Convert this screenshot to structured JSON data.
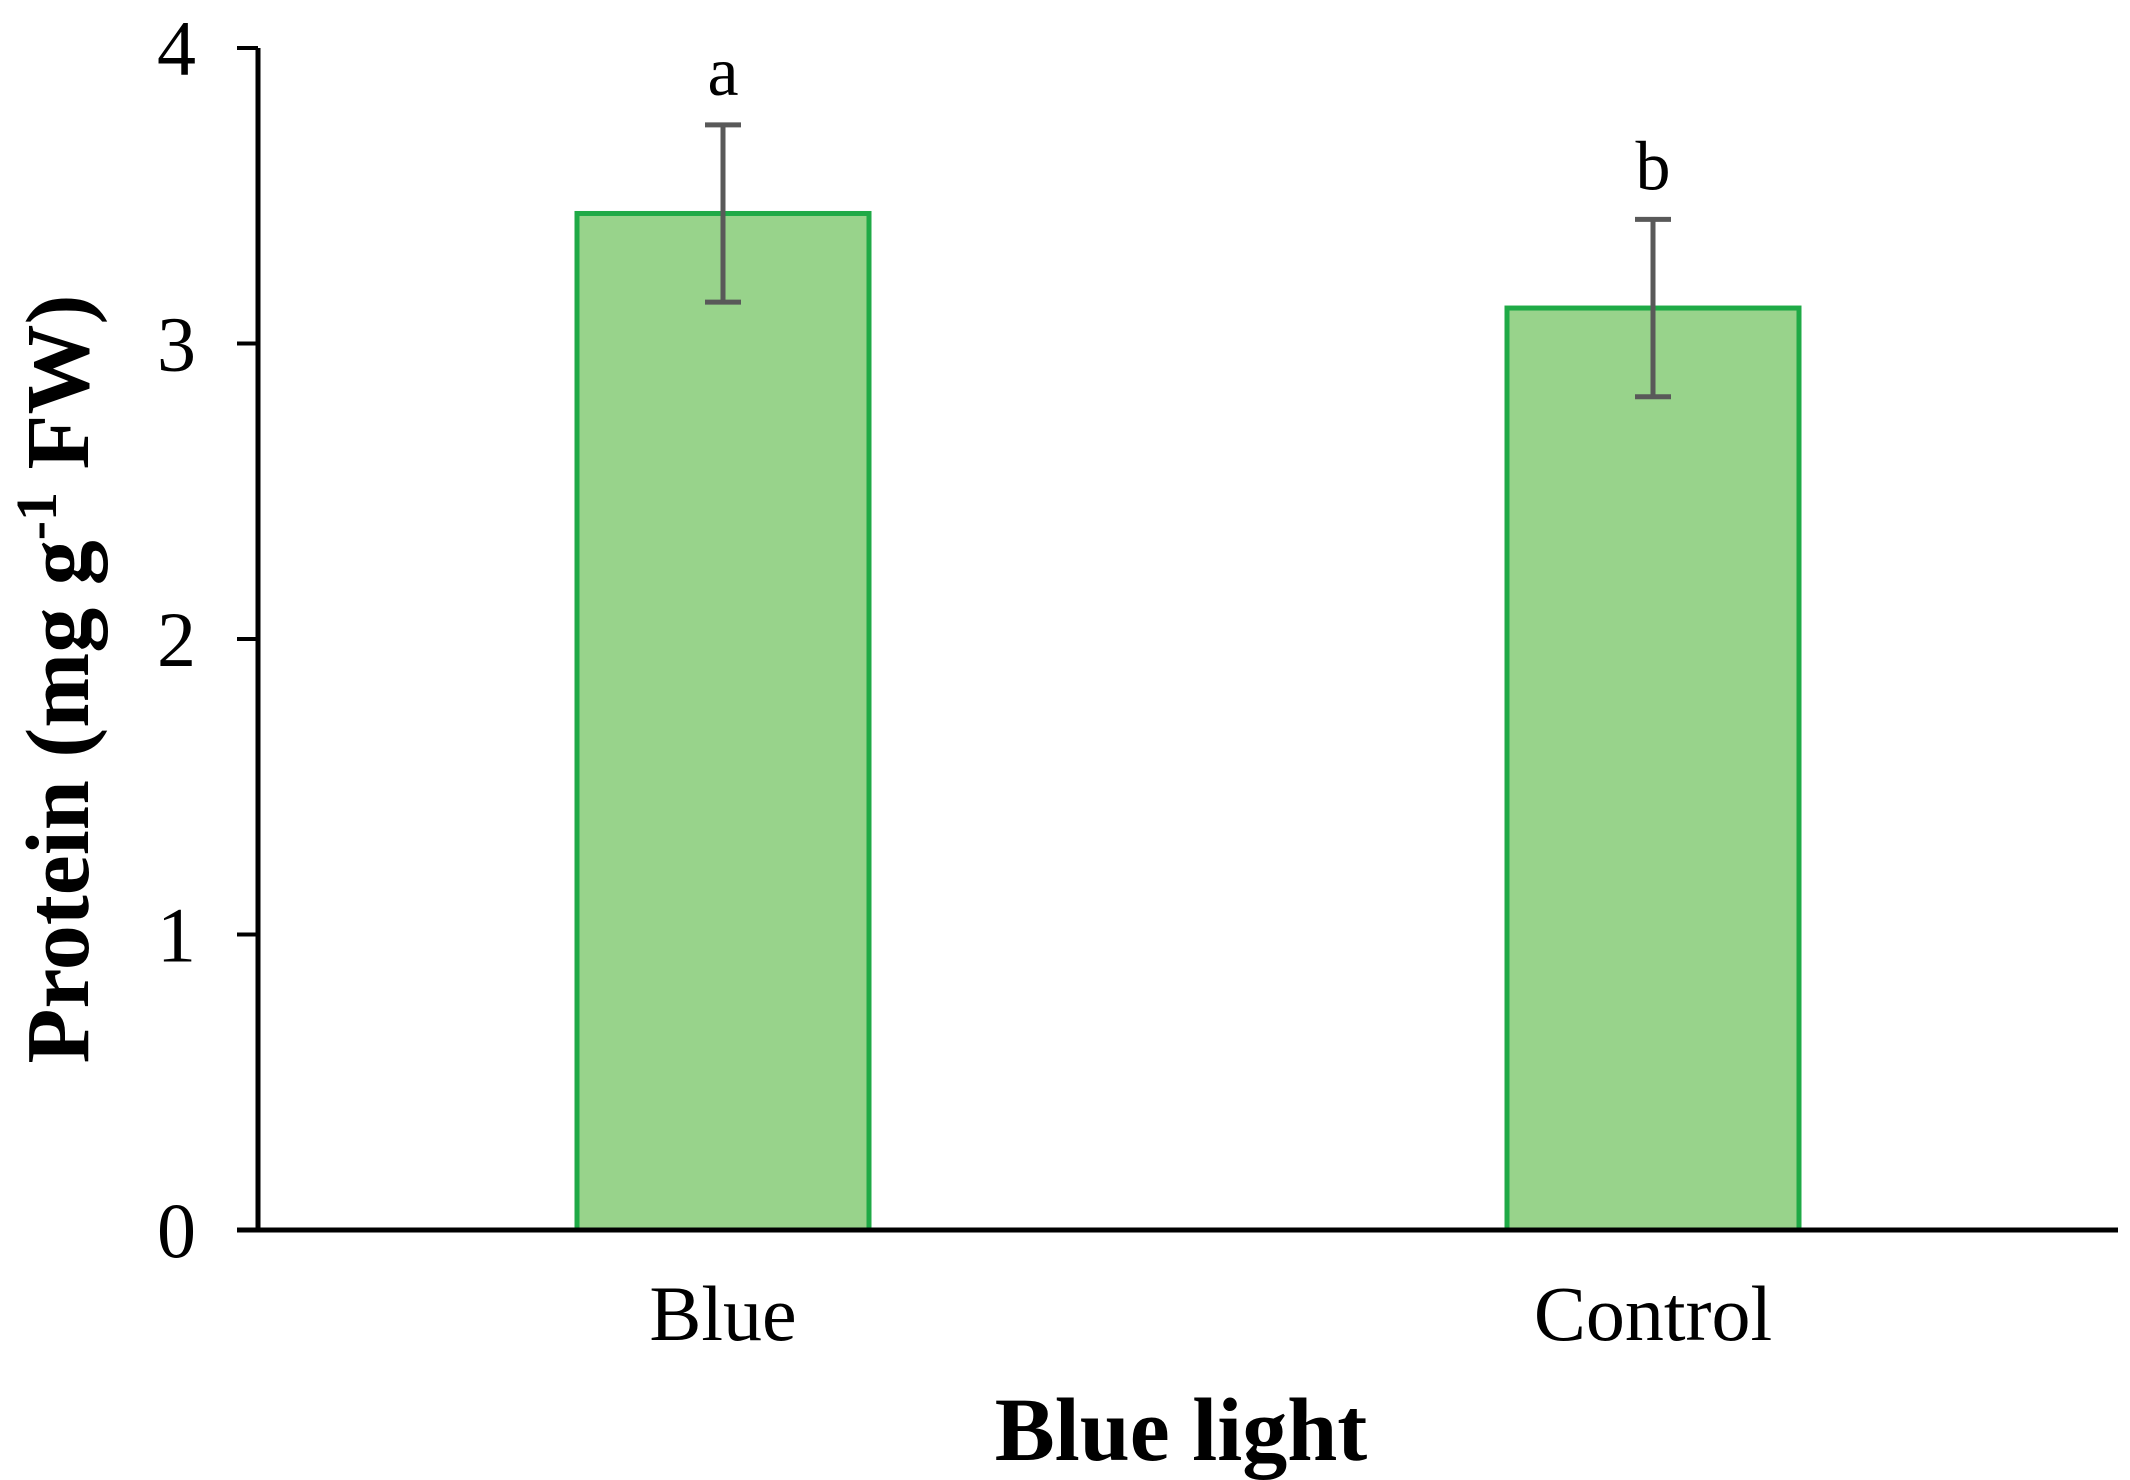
{
  "chart_data": {
    "type": "bar",
    "title": "",
    "xlabel": "Blue light",
    "ylabel": {
      "prefix": "Protein (mg g",
      "superscript": "-1",
      "suffix": " FW)"
    },
    "categories": [
      "Blue",
      "Control"
    ],
    "values": [
      3.44,
      3.12
    ],
    "error": [
      0.3,
      0.3
    ],
    "significance": [
      "a",
      "b"
    ],
    "ylim": [
      0,
      4
    ],
    "yticks": [
      "0",
      "1",
      "2",
      "3",
      "4"
    ],
    "grid": false,
    "legend": "none",
    "colors": {
      "bar_fill": "#98d38b",
      "bar_edge": "#1faa46",
      "error_bar": "#595959",
      "axis": "#000000"
    }
  }
}
